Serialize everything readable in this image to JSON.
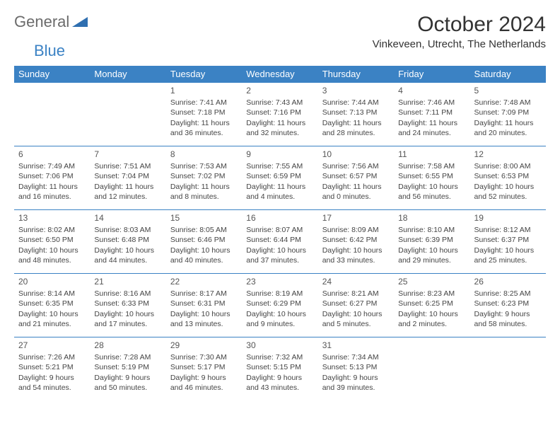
{
  "logo": {
    "text1": "General",
    "text2": "Blue",
    "tri_color": "#2f6fb0"
  },
  "header": {
    "title": "October 2024",
    "subtitle": "Vinkeveen, Utrecht, The Netherlands"
  },
  "style": {
    "header_bg": "#3b82c4",
    "header_fg": "#ffffff",
    "row_border": "#3b82c4",
    "body_bg": "#ffffff",
    "text_color": "#444444",
    "daynum_color": "#555555",
    "title_fontsize": 30,
    "subtitle_fontsize": 15,
    "th_fontsize": 13,
    "cell_fontsize": 10.5
  },
  "daynames": [
    "Sunday",
    "Monday",
    "Tuesday",
    "Wednesday",
    "Thursday",
    "Friday",
    "Saturday"
  ],
  "weeks": [
    [
      null,
      null,
      {
        "n": "1",
        "sr": "7:41 AM",
        "ss": "7:18 PM",
        "dl": "11 hours and 36 minutes."
      },
      {
        "n": "2",
        "sr": "7:43 AM",
        "ss": "7:16 PM",
        "dl": "11 hours and 32 minutes."
      },
      {
        "n": "3",
        "sr": "7:44 AM",
        "ss": "7:13 PM",
        "dl": "11 hours and 28 minutes."
      },
      {
        "n": "4",
        "sr": "7:46 AM",
        "ss": "7:11 PM",
        "dl": "11 hours and 24 minutes."
      },
      {
        "n": "5",
        "sr": "7:48 AM",
        "ss": "7:09 PM",
        "dl": "11 hours and 20 minutes."
      }
    ],
    [
      {
        "n": "6",
        "sr": "7:49 AM",
        "ss": "7:06 PM",
        "dl": "11 hours and 16 minutes."
      },
      {
        "n": "7",
        "sr": "7:51 AM",
        "ss": "7:04 PM",
        "dl": "11 hours and 12 minutes."
      },
      {
        "n": "8",
        "sr": "7:53 AM",
        "ss": "7:02 PM",
        "dl": "11 hours and 8 minutes."
      },
      {
        "n": "9",
        "sr": "7:55 AM",
        "ss": "6:59 PM",
        "dl": "11 hours and 4 minutes."
      },
      {
        "n": "10",
        "sr": "7:56 AM",
        "ss": "6:57 PM",
        "dl": "11 hours and 0 minutes."
      },
      {
        "n": "11",
        "sr": "7:58 AM",
        "ss": "6:55 PM",
        "dl": "10 hours and 56 minutes."
      },
      {
        "n": "12",
        "sr": "8:00 AM",
        "ss": "6:53 PM",
        "dl": "10 hours and 52 minutes."
      }
    ],
    [
      {
        "n": "13",
        "sr": "8:02 AM",
        "ss": "6:50 PM",
        "dl": "10 hours and 48 minutes."
      },
      {
        "n": "14",
        "sr": "8:03 AM",
        "ss": "6:48 PM",
        "dl": "10 hours and 44 minutes."
      },
      {
        "n": "15",
        "sr": "8:05 AM",
        "ss": "6:46 PM",
        "dl": "10 hours and 40 minutes."
      },
      {
        "n": "16",
        "sr": "8:07 AM",
        "ss": "6:44 PM",
        "dl": "10 hours and 37 minutes."
      },
      {
        "n": "17",
        "sr": "8:09 AM",
        "ss": "6:42 PM",
        "dl": "10 hours and 33 minutes."
      },
      {
        "n": "18",
        "sr": "8:10 AM",
        "ss": "6:39 PM",
        "dl": "10 hours and 29 minutes."
      },
      {
        "n": "19",
        "sr": "8:12 AM",
        "ss": "6:37 PM",
        "dl": "10 hours and 25 minutes."
      }
    ],
    [
      {
        "n": "20",
        "sr": "8:14 AM",
        "ss": "6:35 PM",
        "dl": "10 hours and 21 minutes."
      },
      {
        "n": "21",
        "sr": "8:16 AM",
        "ss": "6:33 PM",
        "dl": "10 hours and 17 minutes."
      },
      {
        "n": "22",
        "sr": "8:17 AM",
        "ss": "6:31 PM",
        "dl": "10 hours and 13 minutes."
      },
      {
        "n": "23",
        "sr": "8:19 AM",
        "ss": "6:29 PM",
        "dl": "10 hours and 9 minutes."
      },
      {
        "n": "24",
        "sr": "8:21 AM",
        "ss": "6:27 PM",
        "dl": "10 hours and 5 minutes."
      },
      {
        "n": "25",
        "sr": "8:23 AM",
        "ss": "6:25 PM",
        "dl": "10 hours and 2 minutes."
      },
      {
        "n": "26",
        "sr": "8:25 AM",
        "ss": "6:23 PM",
        "dl": "9 hours and 58 minutes."
      }
    ],
    [
      {
        "n": "27",
        "sr": "7:26 AM",
        "ss": "5:21 PM",
        "dl": "9 hours and 54 minutes."
      },
      {
        "n": "28",
        "sr": "7:28 AM",
        "ss": "5:19 PM",
        "dl": "9 hours and 50 minutes."
      },
      {
        "n": "29",
        "sr": "7:30 AM",
        "ss": "5:17 PM",
        "dl": "9 hours and 46 minutes."
      },
      {
        "n": "30",
        "sr": "7:32 AM",
        "ss": "5:15 PM",
        "dl": "9 hours and 43 minutes."
      },
      {
        "n": "31",
        "sr": "7:34 AM",
        "ss": "5:13 PM",
        "dl": "9 hours and 39 minutes."
      },
      null,
      null
    ]
  ],
  "labels": {
    "sunrise": "Sunrise:",
    "sunset": "Sunset:",
    "daylight": "Daylight:"
  }
}
